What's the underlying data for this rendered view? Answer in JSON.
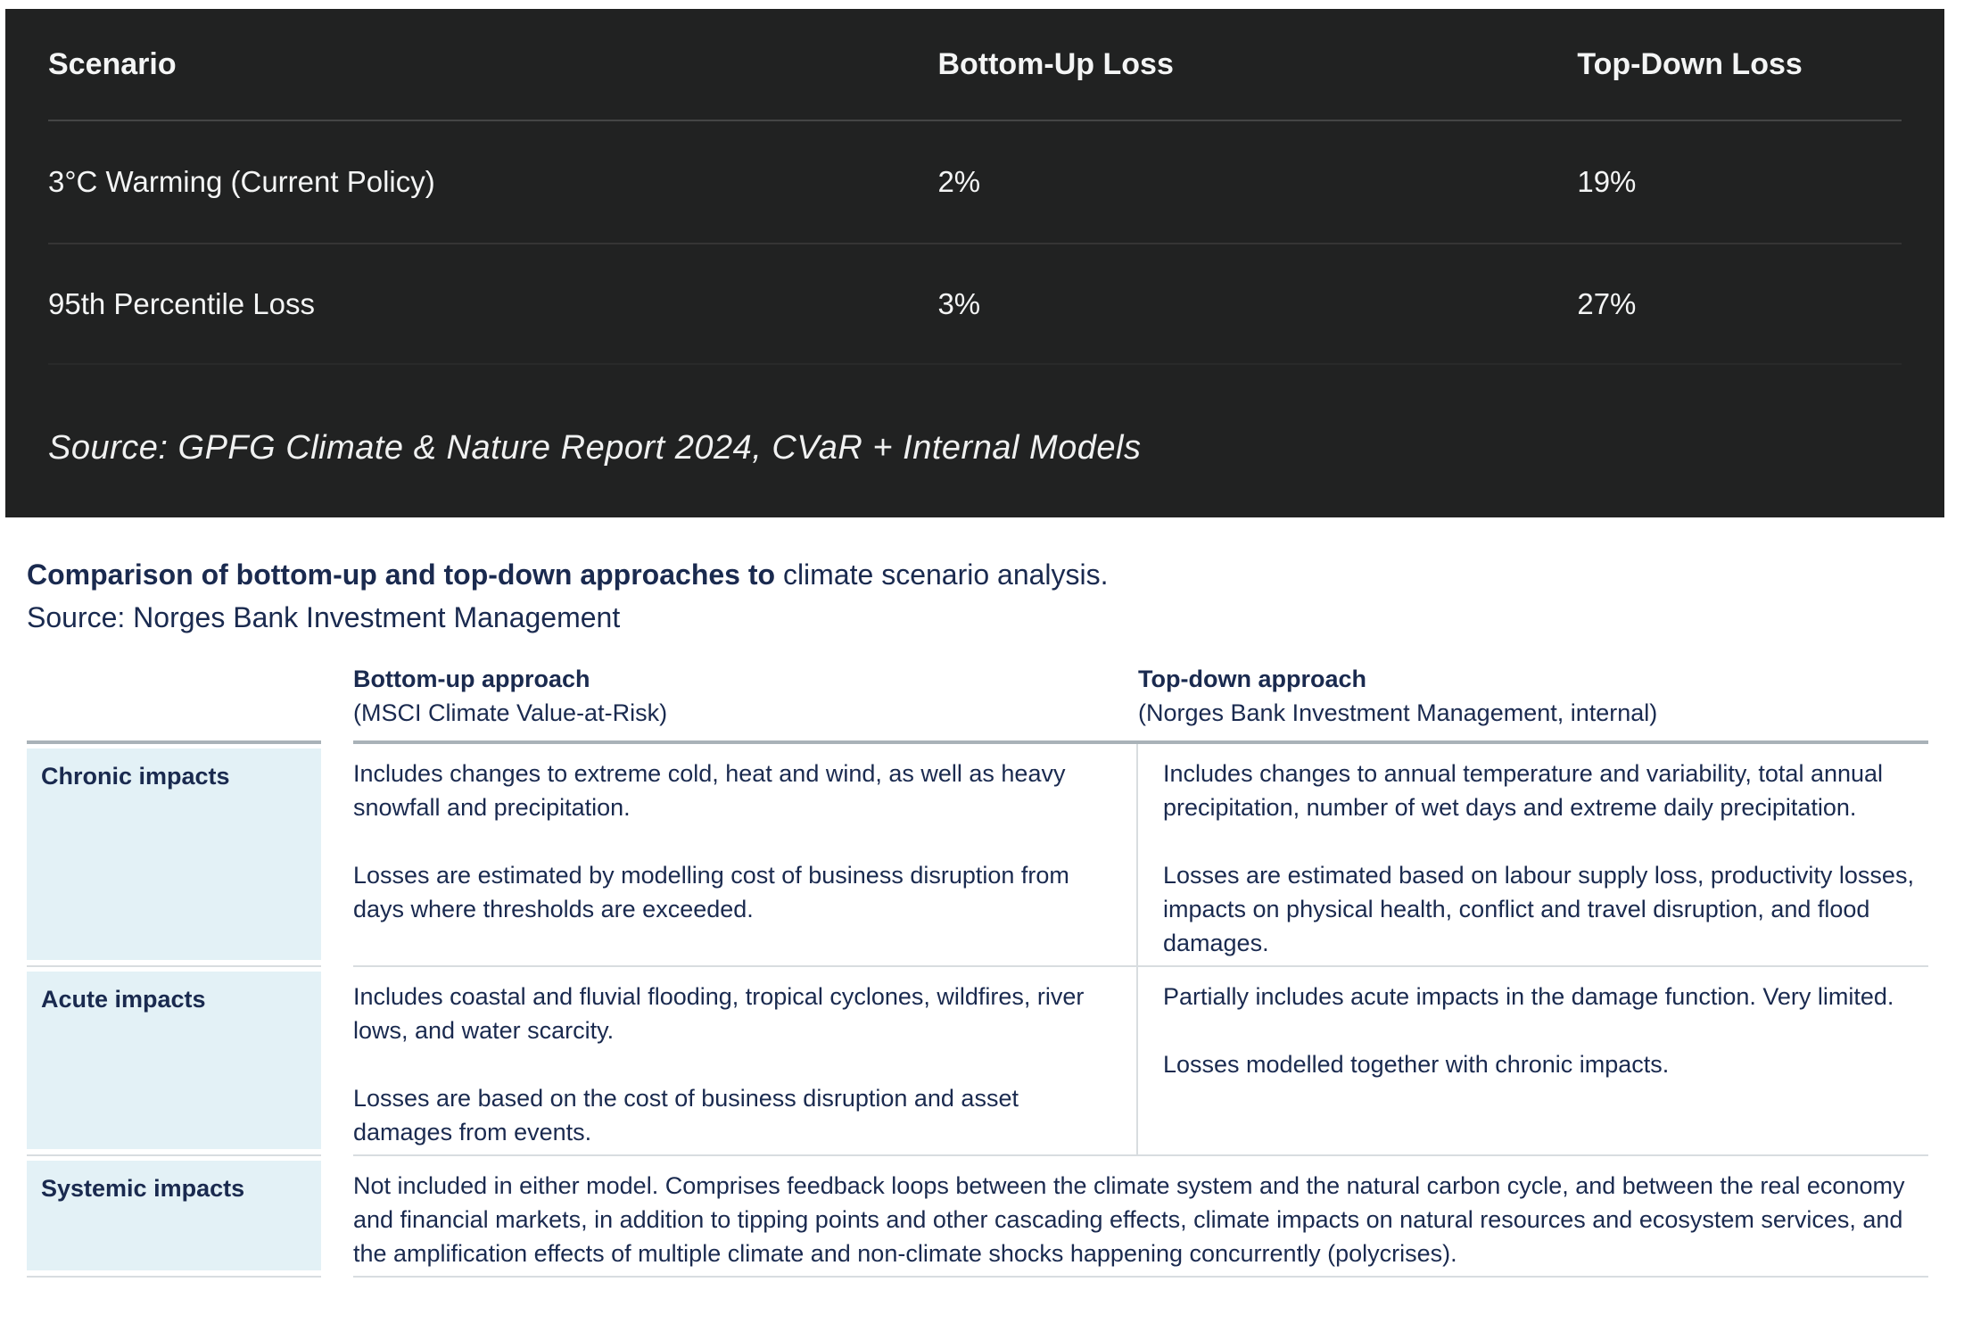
{
  "loss_table": {
    "columns": [
      "Scenario",
      "Bottom-Up Loss",
      "Top-Down Loss"
    ],
    "rows": [
      {
        "scenario": "3°C Warming (Current Policy)",
        "bottom_up": "2%",
        "top_down": "19%"
      },
      {
        "scenario": "95th Percentile Loss",
        "bottom_up": "3%",
        "top_down": "27%"
      }
    ],
    "source": "Source: GPFG Climate & Nature Report 2024, CVaR + Internal Models",
    "colors": {
      "background": "#212222",
      "text": "#f4f5f5"
    }
  },
  "caption": {
    "bold": "Comparison of bottom-up and top-down approaches to",
    "regular": " climate scenario analysis.",
    "source": "Source: Norges Bank Investment Management",
    "text_color": "#1a2a4f"
  },
  "comparison_table": {
    "headers": {
      "bottom_up_title": "Bottom-up approach",
      "bottom_up_subtitle": "(MSCI Climate Value-at-Risk)",
      "top_down_title": "Top-down approach",
      "top_down_subtitle": "(Norges Bank Investment Management, internal)"
    },
    "rows": [
      {
        "label": "Chronic impacts",
        "bottom_up": [
          "Includes changes to extreme cold, heat and wind, as well as heavy snowfall and precipitation.",
          "Losses are estimated by modelling cost of business disruption from days where thresholds are exceeded."
        ],
        "top_down": [
          "Includes changes to annual temperature and variability, total annual precipitation, number of wet days and extreme daily precipitation.",
          "Losses are estimated based on labour supply loss, productivity losses, impacts on physical health, conflict and travel disruption, and flood damages."
        ]
      },
      {
        "label": "Acute impacts",
        "bottom_up": [
          "Includes coastal and fluvial flooding, tropical cyclones, wildfires, river lows, and water scarcity.",
          "Losses are based on the cost of business disruption and asset damages from events."
        ],
        "top_down": [
          "Partially includes acute impacts in the damage function. Very limited.",
          "Losses modelled together with chronic impacts."
        ]
      },
      {
        "label": "Systemic impacts",
        "merged": "Not included in either model. Comprises feedback loops between the climate system and the natural carbon cycle, and between the real economy and financial markets, in addition to tipping points and other cascading effects, climate impacts on natural resources and ecosystem services, and the amplification effects of multiple climate and non-climate shocks happening concurrently (polycrises)."
      }
    ],
    "colors": {
      "label_background": "#e3f1f6",
      "text": "#1a2a4f",
      "header_border": "#a9b2b8",
      "row_border": "#d8dde0"
    }
  }
}
